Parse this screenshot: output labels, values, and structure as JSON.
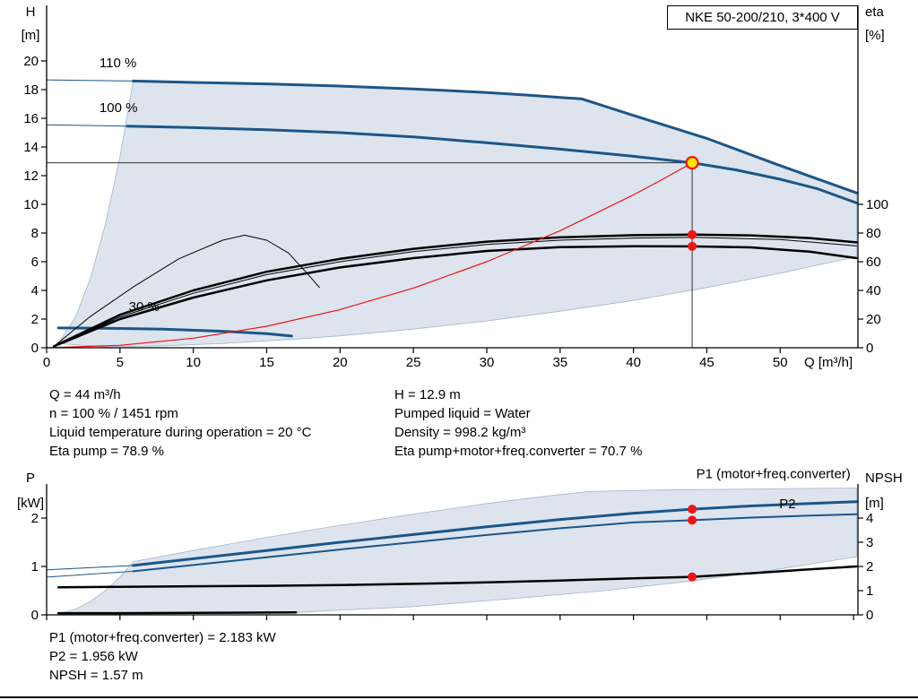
{
  "title_box": "NKE 50-200/210, 3*400 V",
  "info_mid_left": [
    "Q = 44 m³/h",
    "n = 100 % / 1451 rpm",
    "Liquid temperature during operation = 20 °C",
    "Eta pump = 78.9 %"
  ],
  "info_mid_right": [
    "H = 12.9 m",
    "Pumped liquid = Water",
    "Density = 998.2 kg/m³",
    "Eta pump+motor+freq.converter = 70.7 %"
  ],
  "info_bottom": [
    "P1 (motor+freq.converter) = 2.183 kW",
    "P2 = 1.956 kW",
    "NPSH = 1.57 m"
  ],
  "colors": {
    "curve_blue": "#1c5687",
    "label_blue": "#2e71b8",
    "envelope_fill": "#dde4ee",
    "envelope_stroke": "#a3b6ca",
    "red": "#f01414",
    "duty_yellow": "#ffe400",
    "black": "#000000"
  },
  "chart_data": [
    {
      "type": "line",
      "name": "head-capacity-chart",
      "title": "NKE 50-200/210, 3*400 V",
      "xlabel": "Q [m³/h]",
      "left_axis_label": [
        "H",
        "[m]"
      ],
      "right_axis_label": [
        "eta",
        "[%]"
      ],
      "xlim": [
        0,
        55.3
      ],
      "ylim": [
        0,
        23.75
      ],
      "right_scale": 0.1,
      "grid": false,
      "x_ticks": [
        0,
        5,
        10,
        15,
        20,
        25,
        30,
        35,
        40,
        45,
        50
      ],
      "show_x_tick_labels": true,
      "y_ticks": [
        0,
        2,
        4,
        6,
        8,
        10,
        12,
        14,
        16,
        18,
        20
      ],
      "right_ticks": [
        0,
        20,
        40,
        60,
        80,
        100
      ],
      "envelope": {
        "fill": "#dde4ee",
        "stroke": "#a3b6ca",
        "points": [
          [
            0.8,
            0.3
          ],
          [
            2,
            2.2
          ],
          [
            3,
            4.9
          ],
          [
            4,
            8.6
          ],
          [
            5,
            13.3
          ],
          [
            5.9,
            18.6
          ],
          [
            10,
            18.5
          ],
          [
            15,
            18.4
          ],
          [
            20,
            18.25
          ],
          [
            25,
            18.05
          ],
          [
            30,
            17.8
          ],
          [
            33,
            17.6
          ],
          [
            36.5,
            17.35
          ],
          [
            40,
            16.2
          ],
          [
            45,
            14.6
          ],
          [
            50,
            12.7
          ],
          [
            55.2,
            10.8
          ],
          [
            55.2,
            6.35
          ],
          [
            50,
            5.2
          ],
          [
            45,
            4.2
          ],
          [
            40,
            3.3
          ],
          [
            35,
            2.55
          ],
          [
            30,
            1.87
          ],
          [
            25,
            1.3
          ],
          [
            20,
            0.83
          ],
          [
            16.7,
            0.58
          ],
          [
            12,
            0.3
          ],
          [
            8,
            0.14
          ],
          [
            4,
            0.05
          ],
          [
            0.8,
            0.3
          ]
        ]
      },
      "duty": {
        "q": 44,
        "h": 12.9
      },
      "series": [
        {
          "name": "speed-110-extension",
          "color": "#1c5687",
          "width": 1,
          "axis": "left",
          "points": [
            [
              0,
              18.68
            ],
            [
              5.9,
              18.6
            ]
          ]
        },
        {
          "name": "speed-110-curve",
          "color": "#1c5687",
          "width": 3,
          "axis": "left",
          "points": [
            [
              5.9,
              18.6
            ],
            [
              10,
              18.5
            ],
            [
              15,
              18.4
            ],
            [
              20,
              18.25
            ],
            [
              25,
              18.05
            ],
            [
              30,
              17.8
            ],
            [
              33,
              17.6
            ],
            [
              36.5,
              17.35
            ],
            [
              40,
              16.2
            ],
            [
              45,
              14.6
            ],
            [
              50,
              12.7
            ],
            [
              55.2,
              10.8
            ]
          ]
        },
        {
          "name": "speed-100-extension",
          "color": "#1c5687",
          "width": 1,
          "axis": "left",
          "points": [
            [
              0,
              15.55
            ],
            [
              5.5,
              15.45
            ]
          ]
        },
        {
          "name": "speed-100-curve",
          "color": "#1c5687",
          "width": 3,
          "axis": "left",
          "points": [
            [
              5.5,
              15.45
            ],
            [
              10,
              15.35
            ],
            [
              15,
              15.2
            ],
            [
              20,
              15.0
            ],
            [
              25,
              14.7
            ],
            [
              30,
              14.3
            ],
            [
              35,
              13.85
            ],
            [
              40,
              13.35
            ],
            [
              44,
              12.9
            ],
            [
              47,
              12.4
            ],
            [
              50,
              11.75
            ],
            [
              52.5,
              11.1
            ],
            [
              55.2,
              10.1
            ]
          ]
        },
        {
          "name": "speed-30-curve",
          "color": "#1c5687",
          "width": 3,
          "axis": "left",
          "points": [
            [
              0.8,
              1.38
            ],
            [
              4,
              1.36
            ],
            [
              8,
              1.3
            ],
            [
              12,
              1.15
            ],
            [
              15,
              0.98
            ],
            [
              16.7,
              0.82
            ]
          ]
        },
        {
          "name": "eta-reduced-speed-arc",
          "color": "#000000",
          "width": 1,
          "axis": "right",
          "points": [
            [
              0.5,
              1
            ],
            [
              3,
              22
            ],
            [
              6,
              43
            ],
            [
              9,
              62
            ],
            [
              12,
              75
            ],
            [
              13.5,
              78.5
            ],
            [
              15,
              75
            ],
            [
              16.5,
              66
            ],
            [
              18,
              49
            ],
            [
              18.6,
              42
            ]
          ]
        },
        {
          "name": "eta-thin-curve",
          "color": "#000000",
          "width": 1,
          "axis": "right",
          "points": [
            [
              0.5,
              1
            ],
            [
              5,
              21.5
            ],
            [
              10,
              38
            ],
            [
              15,
              51
            ],
            [
              20,
              60
            ],
            [
              25,
              67
            ],
            [
              30,
              72
            ],
            [
              35,
              75
            ],
            [
              40,
              76.5
            ],
            [
              44,
              77
            ],
            [
              50,
              75.5
            ],
            [
              55.2,
              71
            ]
          ]
        },
        {
          "name": "eta-pump-curve",
          "color": "#000000",
          "width": 2.5,
          "axis": "right",
          "points": [
            [
              0.5,
              1
            ],
            [
              5,
              23
            ],
            [
              10,
              40
            ],
            [
              15,
              53
            ],
            [
              20,
              62
            ],
            [
              25,
              69
            ],
            [
              30,
              74
            ],
            [
              35,
              77
            ],
            [
              40,
              78.5
            ],
            [
              44,
              78.9
            ],
            [
              48,
              78.4
            ],
            [
              52,
              76.5
            ],
            [
              55.2,
              73.5
            ]
          ]
        },
        {
          "name": "eta-total-curve",
          "color": "#000000",
          "width": 2.5,
          "axis": "right",
          "points": [
            [
              0.5,
              1
            ],
            [
              5,
              20
            ],
            [
              10,
              35
            ],
            [
              15,
              47
            ],
            [
              20,
              56
            ],
            [
              25,
              62.5
            ],
            [
              30,
              67.5
            ],
            [
              35,
              70.2
            ],
            [
              40,
              70.8
            ],
            [
              44,
              70.7
            ],
            [
              48,
              70
            ],
            [
              52,
              67
            ],
            [
              55.2,
              62.5
            ]
          ]
        },
        {
          "name": "system-curve",
          "color": "#f01414",
          "width": 1.2,
          "axis": "left",
          "points": [
            [
              0,
              0
            ],
            [
              5,
              0.17
            ],
            [
              10,
              0.67
            ],
            [
              15,
              1.5
            ],
            [
              20,
              2.66
            ],
            [
              25,
              4.16
            ],
            [
              30,
              6.0
            ],
            [
              35,
              8.16
            ],
            [
              40,
              10.66
            ],
            [
              42,
              11.75
            ],
            [
              44,
              12.9
            ]
          ]
        }
      ],
      "markers": [
        {
          "q": 44,
          "v": 12.9,
          "axis": "left",
          "type": "duty-point"
        },
        {
          "q": 44,
          "v": 78.9,
          "axis": "right",
          "type": "dot"
        },
        {
          "q": 44,
          "v": 70.7,
          "axis": "right",
          "type": "dot"
        }
      ],
      "labels": [
        {
          "text": "110 %",
          "q": 3.6,
          "v": 19.55,
          "color": "#000000",
          "anchor": "start"
        },
        {
          "text": "100 %",
          "q": 3.6,
          "v": 16.45,
          "color": "#000000",
          "anchor": "start"
        },
        {
          "text": "30 %",
          "q": 5.6,
          "v": 2.55,
          "color": "#000000",
          "anchor": "start"
        }
      ]
    },
    {
      "type": "line",
      "name": "power-npsh-chart",
      "title": "",
      "xlabel": "",
      "left_axis_label": [
        "P",
        "[kW]"
      ],
      "right_axis_label": [
        "NPSH",
        "[m]"
      ],
      "xlim": [
        0,
        55.3
      ],
      "ylim": [
        0,
        2.667
      ],
      "right_scale": 0.5,
      "grid": false,
      "x_ticks": [
        0,
        5,
        10,
        15,
        20,
        25,
        30,
        35,
        40,
        45,
        50,
        55
      ],
      "show_x_tick_labels": false,
      "y_ticks": [
        0,
        1,
        2
      ],
      "right_ticks": [
        0,
        1,
        2,
        3,
        4
      ],
      "envelope": {
        "fill": "#dde4ee",
        "stroke": "#a3b6ca",
        "points": [
          [
            0.8,
            0.02
          ],
          [
            2,
            0.12
          ],
          [
            3,
            0.28
          ],
          [
            4,
            0.5
          ],
          [
            5,
            0.78
          ],
          [
            5.9,
            1.1
          ],
          [
            10,
            1.33
          ],
          [
            15,
            1.6
          ],
          [
            20,
            1.85
          ],
          [
            25,
            2.08
          ],
          [
            30,
            2.3
          ],
          [
            34,
            2.45
          ],
          [
            37,
            2.55
          ],
          [
            42,
            2.58
          ],
          [
            48,
            2.6
          ],
          [
            55.2,
            2.62
          ],
          [
            55.2,
            1.2
          ],
          [
            50,
            0.95
          ],
          [
            44,
            0.7
          ],
          [
            38,
            0.5
          ],
          [
            32,
            0.34
          ],
          [
            25,
            0.17
          ],
          [
            17,
            0.05
          ],
          [
            12,
            0.035
          ],
          [
            8,
            0.03
          ],
          [
            4,
            0.025
          ],
          [
            0.8,
            0.02
          ]
        ]
      },
      "series": [
        {
          "name": "p1-extension",
          "color": "#1c5687",
          "width": 1,
          "axis": "left",
          "points": [
            [
              0,
              0.93
            ],
            [
              5.9,
              1.02
            ]
          ]
        },
        {
          "name": "p2-extension",
          "color": "#1c5687",
          "width": 1,
          "axis": "left",
          "points": [
            [
              0,
              0.78
            ],
            [
              5.9,
              0.9
            ]
          ]
        },
        {
          "name": "p1-curve",
          "color": "#1c5687",
          "width": 3,
          "axis": "left",
          "points": [
            [
              5.9,
              1.02
            ],
            [
              10,
              1.16
            ],
            [
              15,
              1.33
            ],
            [
              20,
              1.5
            ],
            [
              25,
              1.66
            ],
            [
              30,
              1.82
            ],
            [
              35,
              1.97
            ],
            [
              40,
              2.1
            ],
            [
              44,
              2.183
            ],
            [
              48,
              2.25
            ],
            [
              52,
              2.3
            ],
            [
              55.2,
              2.34
            ]
          ]
        },
        {
          "name": "p2-curve",
          "color": "#1c5687",
          "width": 2,
          "axis": "left",
          "points": [
            [
              5.9,
              0.9
            ],
            [
              10,
              1.03
            ],
            [
              15,
              1.19
            ],
            [
              20,
              1.35
            ],
            [
              25,
              1.5
            ],
            [
              30,
              1.65
            ],
            [
              35,
              1.79
            ],
            [
              40,
              1.91
            ],
            [
              44,
              1.956
            ],
            [
              48,
              2.01
            ],
            [
              52,
              2.05
            ],
            [
              55.2,
              2.08
            ]
          ]
        },
        {
          "name": "min-speed-power-curve",
          "color": "#000000",
          "width": 2.5,
          "axis": "left",
          "points": [
            [
              0.8,
              0.035
            ],
            [
              5,
              0.035
            ],
            [
              10,
              0.04
            ],
            [
              14,
              0.046
            ],
            [
              17,
              0.052
            ]
          ]
        },
        {
          "name": "npsh-curve",
          "color": "#000000",
          "width": 2.5,
          "axis": "right",
          "points": [
            [
              0.8,
              1.14
            ],
            [
              5,
              1.16
            ],
            [
              10,
              1.18
            ],
            [
              15,
              1.2
            ],
            [
              20,
              1.23
            ],
            [
              25,
              1.28
            ],
            [
              30,
              1.34
            ],
            [
              35,
              1.42
            ],
            [
              40,
              1.51
            ],
            [
              44,
              1.57
            ],
            [
              48,
              1.72
            ],
            [
              52,
              1.88
            ],
            [
              55.2,
              2.0
            ]
          ]
        }
      ],
      "markers": [
        {
          "q": 44,
          "v": 2.183,
          "axis": "left",
          "type": "dot"
        },
        {
          "q": 44,
          "v": 1.956,
          "axis": "left",
          "type": "dot"
        },
        {
          "q": 44,
          "v": 1.57,
          "axis": "right",
          "type": "dot"
        }
      ],
      "labels": [
        {
          "text": "P1 (motor+freq.converter)",
          "q": 54.8,
          "v": 2.82,
          "color": "#2e71b8",
          "anchor": "end"
        },
        {
          "text": "P2",
          "q": 50.5,
          "v": 2.2,
          "color": "#2e71b8",
          "anchor": "middle"
        }
      ]
    }
  ]
}
